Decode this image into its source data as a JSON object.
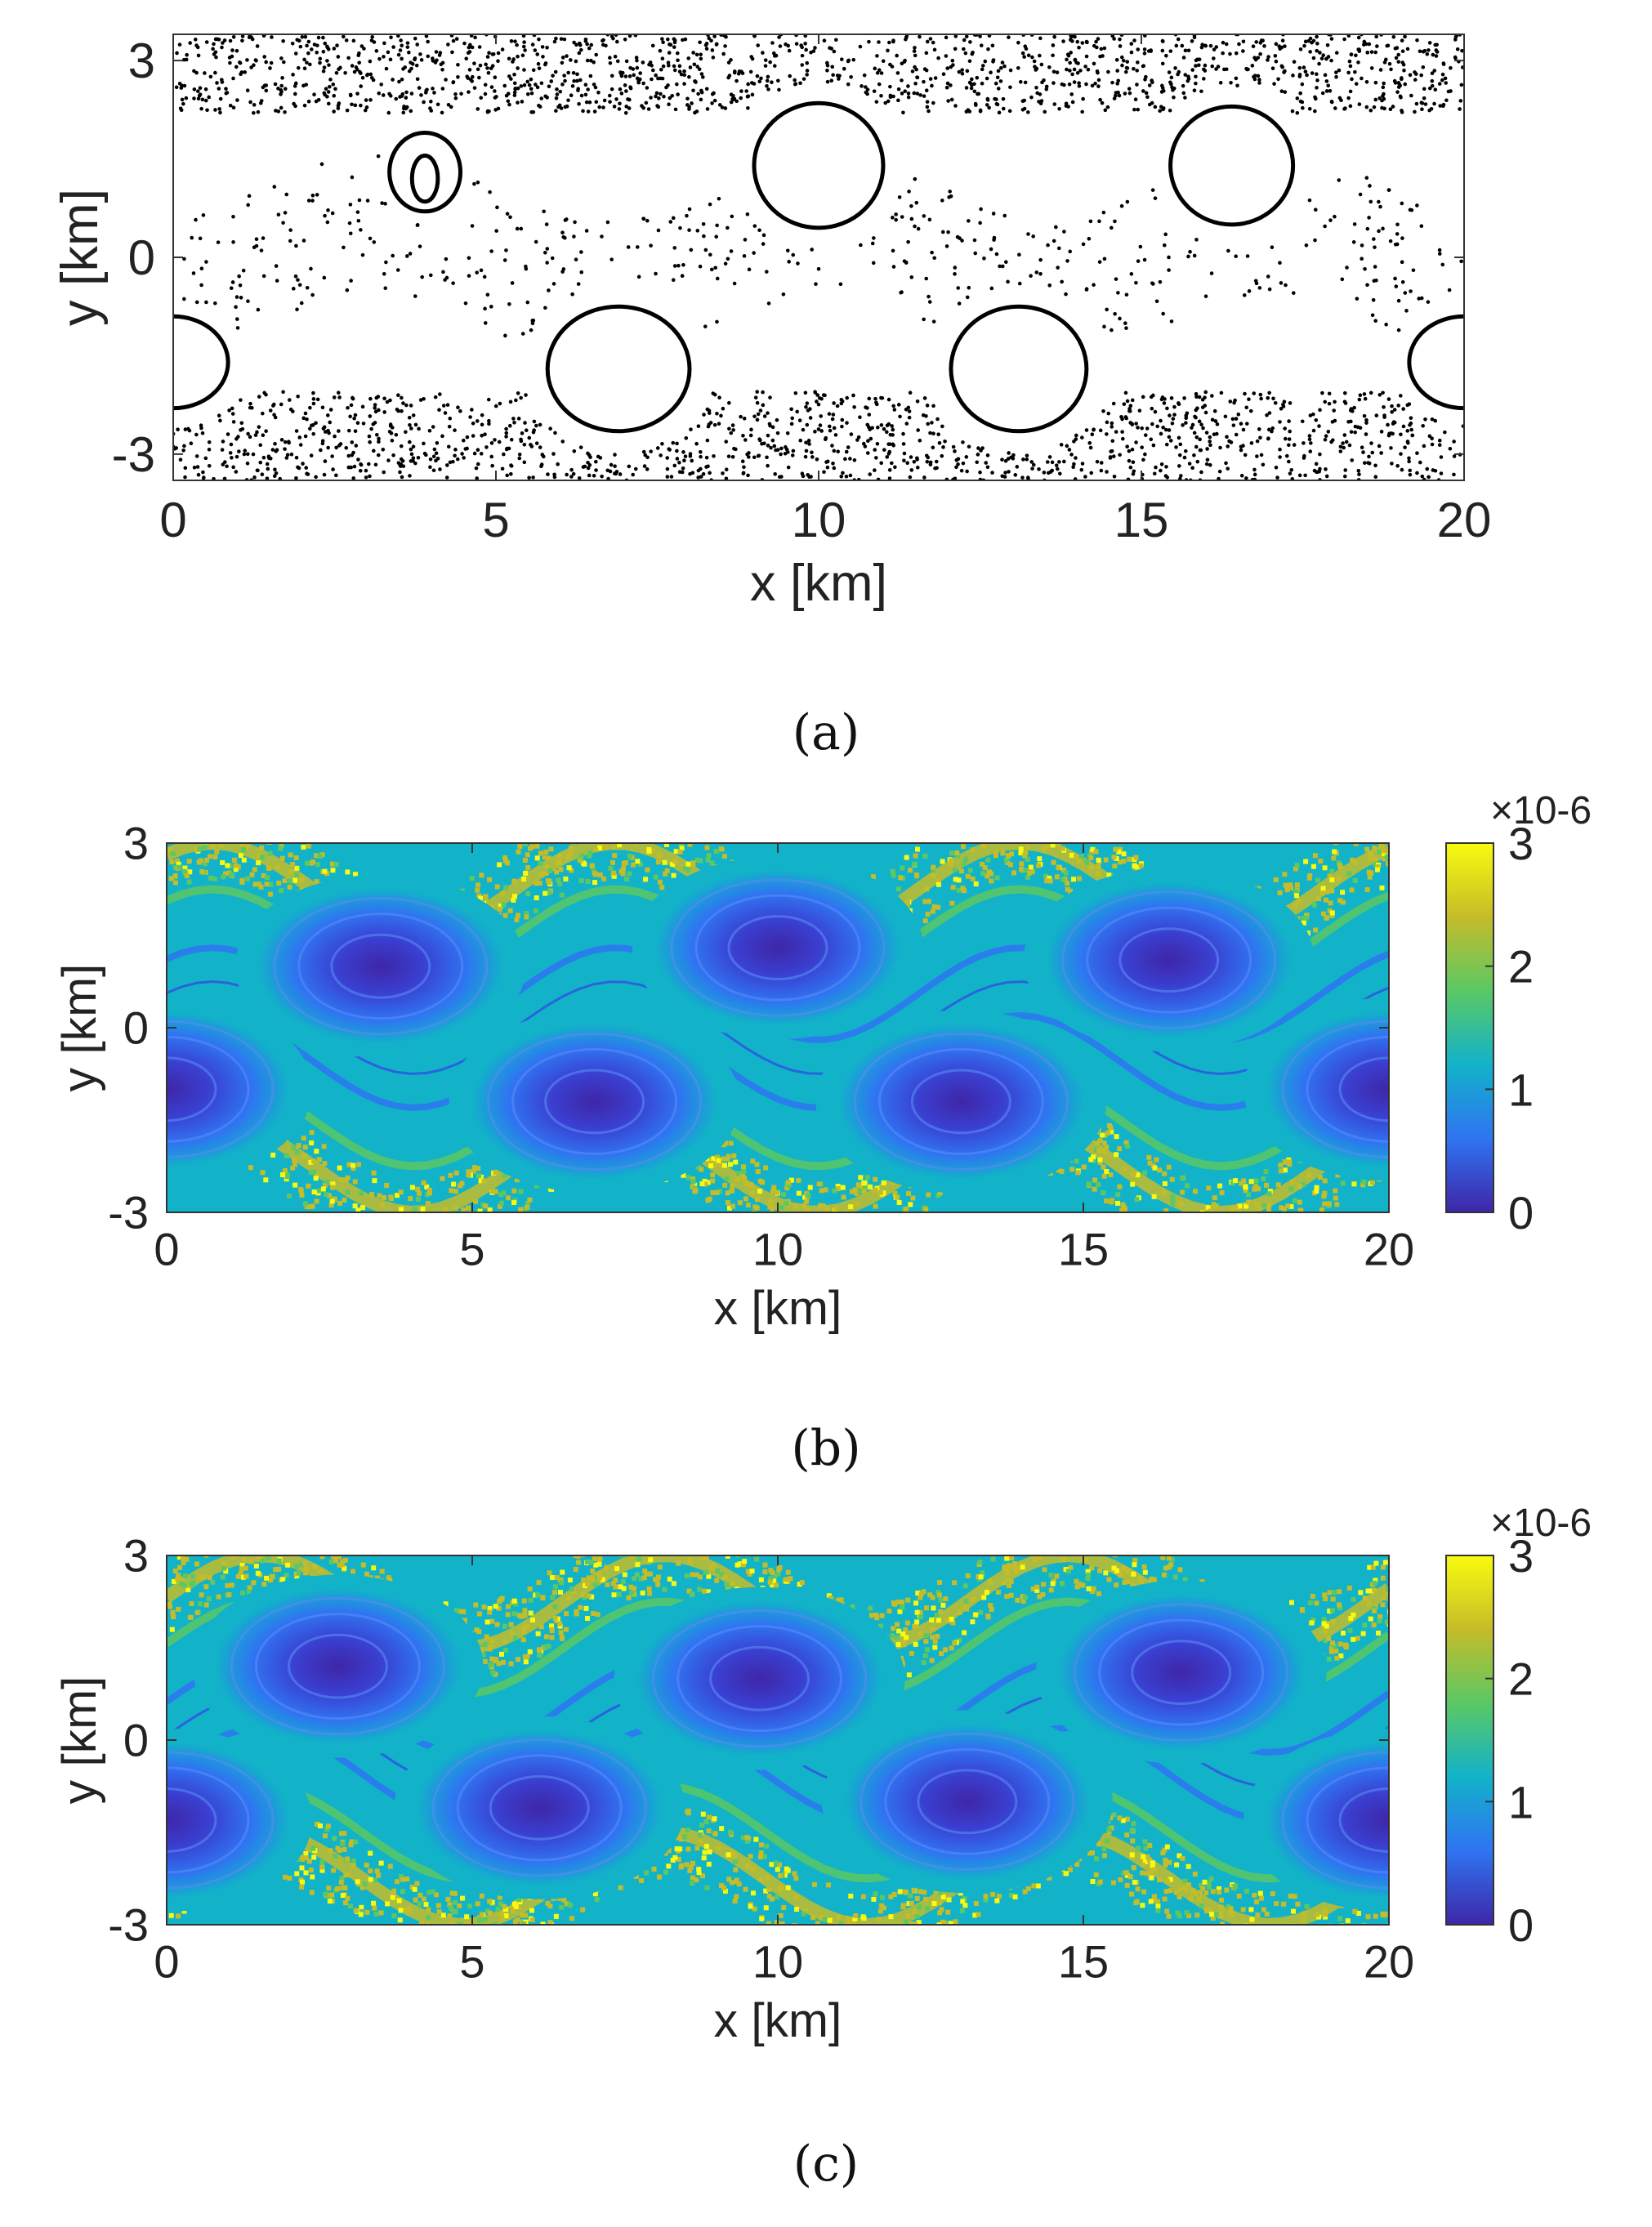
{
  "chart_data": [
    {
      "type": "scatter",
      "panel": "(a)",
      "xlabel": "x [km]",
      "ylabel": "y [km]",
      "xlim": [
        0,
        20
      ],
      "ylim": [
        -3.4,
        3.4
      ],
      "xticks": [
        "0",
        "5",
        "10",
        "15",
        "20"
      ],
      "yticks": [
        "3",
        "0",
        "-3"
      ],
      "grid": false,
      "marker_color": "#000000",
      "closed_orbits": [
        {
          "cx": 3.9,
          "cy": 1.3,
          "rx": 0.55,
          "ry": 0.6
        },
        {
          "cx": 3.9,
          "cy": 1.2,
          "rx": 0.2,
          "ry": 0.35
        },
        {
          "cx": 10.0,
          "cy": 1.4,
          "rx": 1.0,
          "ry": 0.95
        },
        {
          "cx": 16.4,
          "cy": 1.4,
          "rx": 0.95,
          "ry": 0.9
        },
        {
          "cx": 6.9,
          "cy": -1.7,
          "rx": 1.1,
          "ry": 0.95
        },
        {
          "cx": 13.1,
          "cy": -1.7,
          "rx": 1.05,
          "ry": 0.95
        },
        {
          "cx": 0.0,
          "cy": -1.6,
          "rx": 0.85,
          "ry": 0.7
        },
        {
          "cx": 20.0,
          "cy": -1.6,
          "rx": 0.85,
          "ry": 0.7
        }
      ]
    },
    {
      "type": "heatmap",
      "panel": "(b)",
      "xlabel": "x [km]",
      "ylabel": "y [km]",
      "xlim": [
        0,
        20
      ],
      "ylim": [
        -3,
        3
      ],
      "xticks": [
        "0",
        "5",
        "10",
        "15",
        "20"
      ],
      "yticks": [
        "3",
        "0",
        "-3"
      ],
      "colorbar": {
        "min": 0,
        "max": 3,
        "ticks": [
          "3",
          "2",
          "1",
          "0"
        ],
        "exponent": "×10-6"
      },
      "colormap": [
        "#3e26a8",
        "#2f74f2",
        "#12b2c9",
        "#5bc864",
        "#c5bc29",
        "#f9fb0e"
      ],
      "eddies": [
        {
          "cx": 3.5,
          "cy": 1.0
        },
        {
          "cx": 10.0,
          "cy": 1.3
        },
        {
          "cx": 16.4,
          "cy": 1.1
        },
        {
          "cx": 0.0,
          "cy": -1.0
        },
        {
          "cx": 7.0,
          "cy": -1.2
        },
        {
          "cx": 13.0,
          "cy": -1.2
        },
        {
          "cx": 20.0,
          "cy": -1.0
        }
      ]
    },
    {
      "type": "heatmap",
      "panel": "(c)",
      "xlabel": "x [km]",
      "ylabel": "y [km]",
      "xlim": [
        0,
        20
      ],
      "ylim": [
        -3,
        3
      ],
      "xticks": [
        "0",
        "5",
        "10",
        "15",
        "20"
      ],
      "yticks": [
        "3",
        "0",
        "-3"
      ],
      "colorbar": {
        "min": 0,
        "max": 3,
        "ticks": [
          "3",
          "2",
          "1",
          "0"
        ],
        "exponent": "×10-6"
      },
      "colormap": [
        "#3e26a8",
        "#2f74f2",
        "#12b2c9",
        "#5bc864",
        "#c5bc29",
        "#f9fb0e"
      ],
      "eddies": [
        {
          "cx": 2.8,
          "cy": 1.2
        },
        {
          "cx": 9.7,
          "cy": 1.0
        },
        {
          "cx": 16.6,
          "cy": 1.1
        },
        {
          "cx": 0.0,
          "cy": -1.3
        },
        {
          "cx": 6.1,
          "cy": -1.1
        },
        {
          "cx": 13.1,
          "cy": -1.0
        },
        {
          "cx": 20.0,
          "cy": -1.3
        }
      ]
    }
  ]
}
